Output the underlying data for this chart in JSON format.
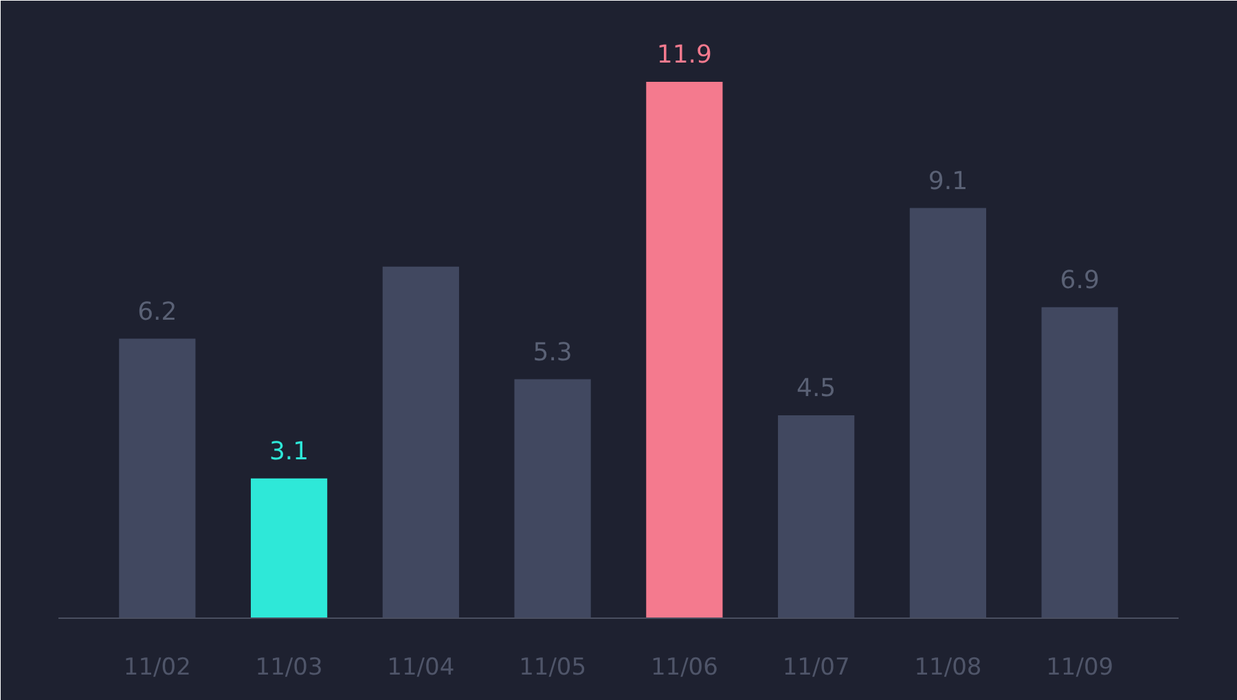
{
  "chart_data": {
    "type": "bar",
    "categories": [
      "11/02",
      "11/03",
      "11/04",
      "11/05",
      "11/06",
      "11/07",
      "11/08",
      "11/09"
    ],
    "values": [
      6.2,
      3.1,
      7.8,
      5.3,
      11.9,
      4.5,
      9.1,
      6.9
    ],
    "colors": [
      "#414860",
      "#2ee8d8",
      "#414860",
      "#414860",
      "#f47a8e",
      "#414860",
      "#414860",
      "#414860"
    ],
    "value_labels": [
      "6.2",
      "3.1",
      null,
      "5.3",
      "11.9",
      "4.5",
      "9.1",
      "6.9"
    ],
    "grid": false
  }
}
